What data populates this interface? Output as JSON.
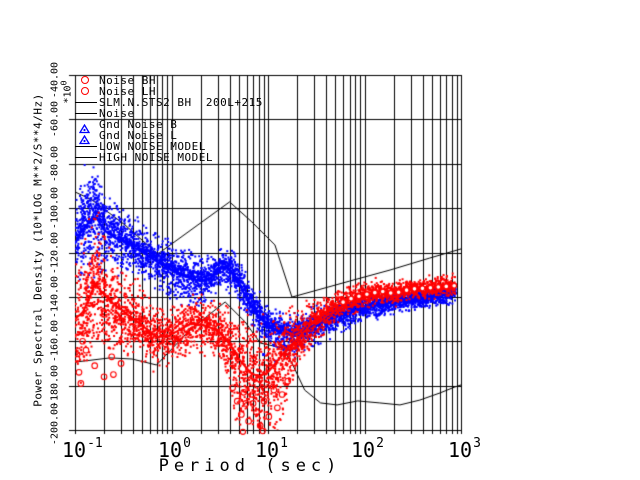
{
  "colors": {
    "red": "#ff0000",
    "blue": "#0000ff",
    "black": "#000000",
    "background": "#ffffff"
  },
  "legend": {
    "items": [
      {
        "label": "Noise BH",
        "marker": "circle",
        "color": "#ff0000"
      },
      {
        "label": "Noise LH",
        "marker": "circle",
        "color": "#ff0000"
      },
      {
        "label": "SLM.N.STS2 BH  200L+215",
        "marker": "line",
        "color": "#000000"
      },
      {
        "label": "Noise",
        "marker": "line",
        "color": "#000000"
      },
      {
        "label": "Gnd Noise B",
        "marker": "triangle",
        "color": "#0000ff"
      },
      {
        "label": "Gnd Noise L",
        "marker": "triangle",
        "color": "#0000ff"
      },
      {
        "label": "LOW NOISE MODEL",
        "marker": "line",
        "color": "#000000"
      },
      {
        "label": "HIGH NOISE MODEL",
        "marker": "line",
        "color": "#000000"
      }
    ]
  },
  "axes": {
    "x": {
      "title": "Period (sec)",
      "scale": "log",
      "range": [
        0.1,
        1000
      ],
      "ticks": [
        {
          "base": "10",
          "exp": "-1"
        },
        {
          "base": "10",
          "exp": "0"
        },
        {
          "base": "10",
          "exp": "1"
        },
        {
          "base": "10",
          "exp": "2"
        },
        {
          "base": "10",
          "exp": "3"
        }
      ]
    },
    "y": {
      "title": "Power Spectral Density (10*LOG M**2/S**4/Hz)",
      "multiplier_base": "*10",
      "multiplier_exp": "0",
      "range": [
        -200,
        -40
      ],
      "tick_step": 20,
      "tick_labels": [
        "-40.00",
        "-60.00",
        "-80.00",
        "-100.00",
        "-120.00",
        "-140.00",
        "-160.00",
        "-180.00",
        "-200.00"
      ]
    }
  },
  "chart_data": {
    "type": "scatter",
    "title": "",
    "xlabel": "Period (sec)",
    "ylabel": "Power Spectral Density (10*LOG M**2/S**4/Hz) *10^0",
    "x_scale": "log",
    "xlim": [
      0.1,
      1000
    ],
    "ylim": [
      -200,
      -40
    ],
    "grid": "vertical log minor+major lines, horizontal every 20 dB",
    "legend_position": "top-left inside plot",
    "series": [
      {
        "name": "Gnd Noise (blue, BH+LH)",
        "color": "#0000ff",
        "marker": "triangle-dot-band",
        "centerline": [
          [
            0.1,
            -116
          ],
          [
            0.115,
            -111
          ],
          [
            0.135,
            -107
          ],
          [
            0.165,
            -104
          ],
          [
            0.2,
            -110
          ],
          [
            0.25,
            -113
          ],
          [
            0.35,
            -116
          ],
          [
            0.5,
            -120
          ],
          [
            0.7,
            -124
          ],
          [
            1.0,
            -128
          ],
          [
            1.4,
            -131
          ],
          [
            2.0,
            -133
          ],
          [
            2.5,
            -132
          ],
          [
            3.0,
            -128
          ],
          [
            3.5,
            -126.5
          ],
          [
            4.0,
            -128
          ],
          [
            5.0,
            -134
          ],
          [
            6.0,
            -141
          ],
          [
            8.0,
            -149
          ],
          [
            10,
            -153
          ],
          [
            13,
            -156
          ],
          [
            18,
            -157
          ],
          [
            25,
            -155
          ],
          [
            35,
            -152
          ],
          [
            50,
            -149
          ],
          [
            70,
            -147
          ],
          [
            100,
            -145
          ],
          [
            150,
            -143.5
          ],
          [
            200,
            -142.5
          ],
          [
            300,
            -141.5
          ],
          [
            450,
            -140.5
          ],
          [
            600,
            -139.5
          ],
          [
            850,
            -138.5
          ]
        ],
        "sigma": [
          [
            0.1,
            10
          ],
          [
            0.15,
            12
          ],
          [
            0.2,
            8
          ],
          [
            0.3,
            6
          ],
          [
            0.5,
            5
          ],
          [
            1,
            6
          ],
          [
            2,
            5
          ],
          [
            3,
            4
          ],
          [
            5,
            4
          ],
          [
            8,
            4
          ],
          [
            12,
            4
          ],
          [
            20,
            4
          ],
          [
            50,
            3
          ],
          [
            100,
            2.5
          ],
          [
            300,
            2
          ],
          [
            850,
            2
          ]
        ],
        "spikes_up": [
          [
            0.115,
            -96
          ],
          [
            0.135,
            -89
          ],
          [
            0.155,
            -87
          ],
          [
            0.17,
            -93
          ],
          [
            0.19,
            -98
          ]
        ],
        "left_up_tail": [
          [
            0.1,
            14
          ],
          [
            0.15,
            20
          ],
          [
            0.22,
            10
          ],
          [
            0.3,
            4
          ]
        ],
        "outliers": [
          [
            9,
            -166
          ],
          [
            12,
            -169
          ],
          [
            15,
            -166
          ]
        ]
      },
      {
        "name": "Noise (red, BH+LH)",
        "color": "#ff0000",
        "marker": "circle-band",
        "centerline": [
          [
            0.1,
            -150
          ],
          [
            0.12,
            -147
          ],
          [
            0.14,
            -141
          ],
          [
            0.16,
            -134
          ],
          [
            0.2,
            -139
          ],
          [
            0.25,
            -143
          ],
          [
            0.35,
            -148
          ],
          [
            0.5,
            -153
          ],
          [
            0.7,
            -158
          ],
          [
            0.9,
            -158
          ],
          [
            1.2,
            -155
          ],
          [
            1.6,
            -152
          ],
          [
            2.2,
            -153
          ],
          [
            3.0,
            -155
          ],
          [
            4.0,
            -161
          ],
          [
            5.0,
            -168
          ],
          [
            6.5,
            -174
          ],
          [
            8.0,
            -176
          ],
          [
            10,
            -174
          ],
          [
            13,
            -168
          ],
          [
            16,
            -163
          ],
          [
            20,
            -159
          ],
          [
            30,
            -151
          ],
          [
            50,
            -144
          ],
          [
            70,
            -141
          ],
          [
            100,
            -139
          ],
          [
            150,
            -137.5
          ],
          [
            200,
            -138.5
          ],
          [
            300,
            -136.5
          ],
          [
            450,
            -136
          ],
          [
            600,
            -135.5
          ],
          [
            850,
            -135
          ]
        ],
        "sigma": [
          [
            0.1,
            12
          ],
          [
            0.15,
            14
          ],
          [
            0.2,
            10
          ],
          [
            0.3,
            8
          ],
          [
            0.5,
            7
          ],
          [
            0.7,
            6
          ],
          [
            1,
            6
          ],
          [
            2,
            5
          ],
          [
            3,
            5
          ],
          [
            4,
            8
          ],
          [
            6,
            10
          ],
          [
            8,
            10
          ],
          [
            10,
            10
          ],
          [
            14,
            8
          ],
          [
            20,
            6
          ],
          [
            30,
            4
          ],
          [
            50,
            3
          ],
          [
            100,
            2.5
          ],
          [
            300,
            2
          ],
          [
            850,
            2
          ]
        ],
        "spikes_up": [
          [
            0.13,
            -129
          ],
          [
            0.15,
            -121
          ],
          [
            0.17,
            -125
          ],
          [
            0.2,
            -132
          ]
        ],
        "left_down_tail": [
          [
            0.1,
            24
          ],
          [
            0.2,
            28
          ],
          [
            0.3,
            16
          ],
          [
            0.45,
            6
          ]
        ],
        "trough_down_tail": [
          [
            3.2,
            6
          ],
          [
            4,
            22
          ],
          [
            5,
            42
          ],
          [
            7,
            55
          ],
          [
            9,
            50
          ],
          [
            12,
            36
          ],
          [
            16,
            18
          ],
          [
            20,
            6
          ]
        ],
        "outliers": [
          [
            0.105,
            -168
          ],
          [
            0.11,
            -174
          ],
          [
            0.115,
            -179
          ],
          [
            0.12,
            -160
          ],
          [
            0.13,
            -164
          ],
          [
            0.16,
            -171
          ],
          [
            0.2,
            -176
          ],
          [
            0.24,
            -167
          ],
          [
            0.25,
            -175
          ],
          [
            0.3,
            -170
          ],
          [
            4.3,
            -181
          ],
          [
            4.8,
            -187
          ],
          [
            5.3,
            -193
          ],
          [
            5.6,
            -183
          ],
          [
            5.9,
            -188
          ],
          [
            6.3,
            -196
          ],
          [
            6.9,
            -184
          ],
          [
            7,
            -188
          ],
          [
            7.6,
            -192
          ],
          [
            8.3,
            -198
          ],
          [
            9.1,
            -187
          ],
          [
            10.2,
            -194
          ],
          [
            11.5,
            -182
          ],
          [
            12.5,
            -190
          ],
          [
            14,
            -184
          ],
          [
            16,
            -178
          ],
          [
            18,
            -172
          ]
        ],
        "below_axis_points": [
          [
            5.5,
            -200.8
          ],
          [
            8.8,
            -200.5
          ]
        ],
        "right_circle_markers_from": 60
      },
      {
        "name": "HIGH NOISE MODEL",
        "color": "#000000",
        "type": "line",
        "points": [
          [
            0.1,
            -92.7
          ],
          [
            0.15,
            -96.3
          ],
          [
            0.33,
            -107.6
          ],
          [
            0.72,
            -120.7
          ],
          [
            4.0,
            -97.2
          ],
          [
            6.8,
            -106.2
          ],
          [
            11.8,
            -116.6
          ],
          [
            17.7,
            -140.1
          ],
          [
            70,
            -132.9
          ],
          [
            184,
            -127.9
          ],
          [
            474,
            -122.5
          ],
          [
            1000,
            -118.4
          ]
        ]
      },
      {
        "name": "LOW NOISE MODEL",
        "color": "#000000",
        "type": "line",
        "points": [
          [
            0.1,
            -169.4
          ],
          [
            0.23,
            -167.5
          ],
          [
            0.39,
            -168
          ],
          [
            0.7,
            -170.7
          ],
          [
            1.55,
            -154.9
          ],
          [
            3.6,
            -142.3
          ],
          [
            5.8,
            -151.3
          ],
          [
            8.3,
            -160.8
          ],
          [
            14,
            -163
          ],
          [
            17.7,
            -169.8
          ],
          [
            24,
            -182
          ],
          [
            35,
            -187.8
          ],
          [
            52,
            -188.7
          ],
          [
            85,
            -186.9
          ],
          [
            144,
            -187.8
          ],
          [
            233,
            -188.7
          ],
          [
            375,
            -186.5
          ],
          [
            606,
            -183.3
          ],
          [
            864,
            -180.6
          ],
          [
            1000,
            -179.7
          ]
        ]
      }
    ]
  }
}
